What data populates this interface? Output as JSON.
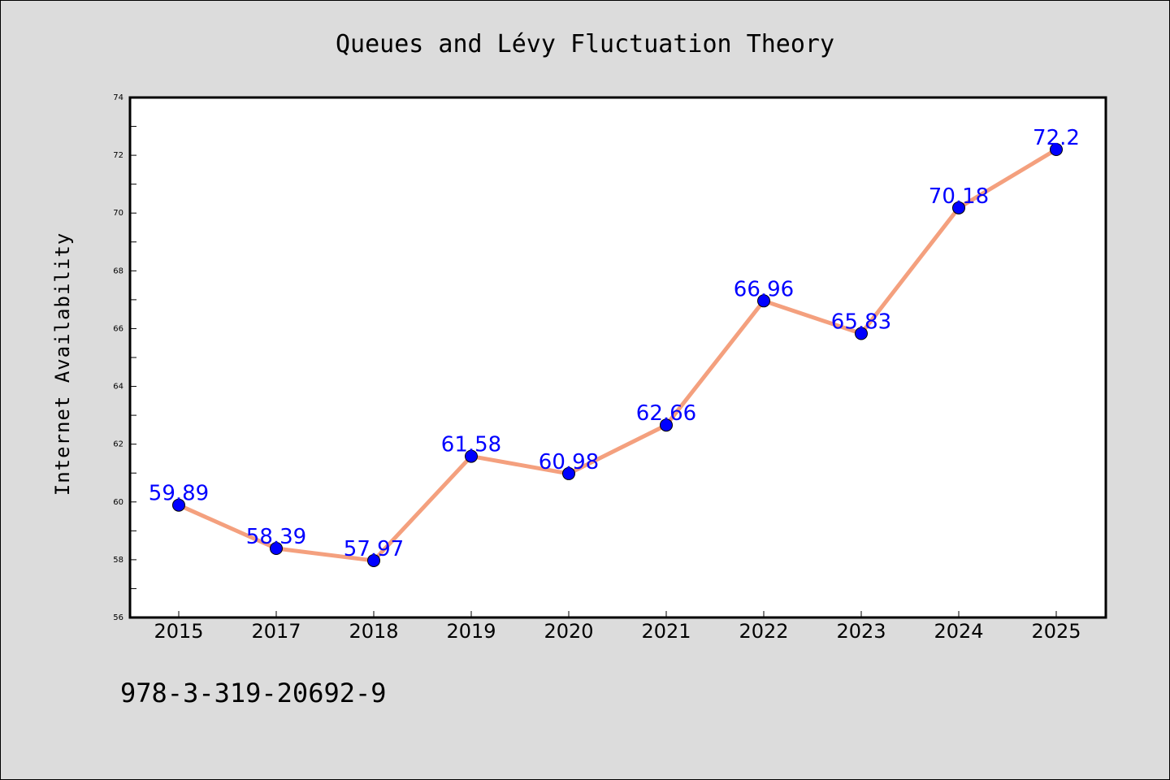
{
  "chart_data": {
    "type": "line",
    "title": "Queues and Lévy Fluctuation Theory",
    "xlabel": "",
    "ylabel": "Internet Availability",
    "categories": [
      "2015",
      "2017",
      "2018",
      "2019",
      "2020",
      "2021",
      "2022",
      "2023",
      "2024",
      "2025"
    ],
    "series": [
      {
        "values": [
          59.89,
          58.39,
          57.97,
          61.58,
          60.98,
          62.66,
          66.96,
          65.83,
          70.18,
          72.2
        ]
      }
    ],
    "data_labels": [
      "59.89",
      "58.39",
      "57.97",
      "61.58",
      "60.98",
      "62.66",
      "66.96",
      "65.83",
      "70.18",
      "72.2"
    ],
    "ylim": [
      56,
      74
    ],
    "yticks": [
      "56",
      "58",
      "60",
      "62",
      "64",
      "66",
      "68",
      "70",
      "72",
      "74"
    ],
    "grid": false,
    "legend": "none",
    "colors": {
      "background": "#dcdcdc",
      "plot_background": "#ffffff",
      "line": "#f4a07e",
      "marker": "#0000ff",
      "label": "#0000ff"
    }
  },
  "footer": {
    "isbn": "978-3-319-20692-9"
  }
}
